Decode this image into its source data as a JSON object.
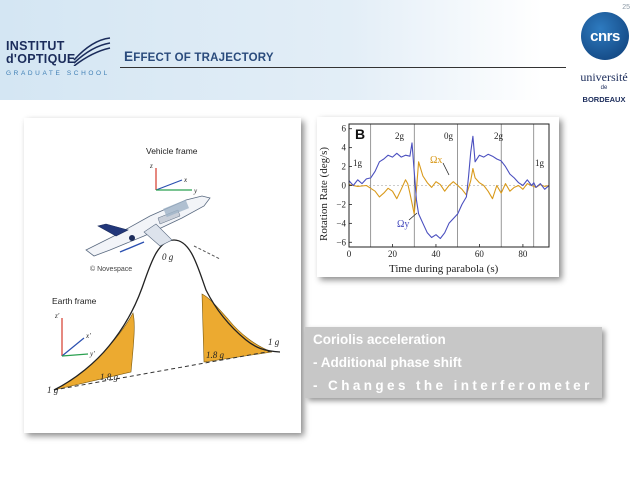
{
  "header": {
    "page_number": "25",
    "title_first": "E",
    "title_rest": "FFECT OF TRAJECTORY",
    "logo_institut": {
      "line1": "INSTITUT",
      "line2": "d'OPTIQUE",
      "line3": "GRADUATE SCHOOL"
    },
    "logo_cnrs": "cnrs",
    "logo_university": {
      "line1": "université",
      "line2": "de",
      "line3": "BORDEAUX"
    }
  },
  "trajectory_figure": {
    "vehicle_frame_label": "Vehicle frame",
    "earth_frame_label": "Earth frame",
    "credit": "© Novespace",
    "axis_z": "z",
    "axis_x": "x",
    "axis_y": "y",
    "axis_z_prime": "z'",
    "axis_x_prime": "x'",
    "axis_y_prime": "y'",
    "label_0g": "0 g",
    "label_18g_left": "1.8 g",
    "label_18g_right": "1.8 g",
    "label_1g_left": "1 g",
    "label_1g_right": "1 g"
  },
  "rotation_chart": {
    "panel_label": "B",
    "ylabel": "Rotation Rate  (deg/s)",
    "xlabel": "Time during parabola  (s)",
    "region_labels": [
      "1g",
      "2g",
      "0g",
      "2g",
      "1g"
    ],
    "omega_x_label": "Ωx",
    "omega_y_label": "Ωy",
    "colors": {
      "omega_x": "#d99a1c",
      "omega_y": "#4a4fbf",
      "dividers": "#555555"
    }
  },
  "chart_data": {
    "type": "line",
    "title": "",
    "xlabel": "Time during parabola  (s)",
    "ylabel": "Rotation Rate  (deg/s)",
    "xlim": [
      0,
      92
    ],
    "ylim": [
      -6.5,
      6.5
    ],
    "x_ticks": [
      0,
      20,
      40,
      60,
      80
    ],
    "y_ticks": [
      6,
      4,
      2,
      0,
      -2,
      -4,
      -6
    ],
    "region_dividers": [
      10,
      30,
      50,
      70,
      85
    ],
    "series": [
      {
        "name": "Ωx",
        "x": [
          0,
          4,
          8,
          10,
          12,
          14,
          16,
          18,
          20,
          22,
          24,
          26,
          27,
          28,
          30,
          31,
          32,
          34,
          36,
          38,
          40,
          42,
          44,
          46,
          48,
          50,
          52,
          54,
          56,
          57,
          58,
          60,
          62,
          64,
          66,
          68,
          70,
          72,
          74,
          76,
          78,
          80,
          82,
          84,
          86,
          88,
          90,
          92
        ],
        "values": [
          0.1,
          -0.1,
          0.0,
          -0.3,
          -0.6,
          -1.2,
          -0.8,
          -0.3,
          -0.6,
          -1.4,
          -0.4,
          0.6,
          0.2,
          -0.8,
          -3.0,
          -0.5,
          2.5,
          1.0,
          0.3,
          -0.2,
          0.4,
          0.1,
          -0.6,
          0.0,
          0.4,
          0.0,
          -0.4,
          -1.0,
          0.5,
          1.8,
          0.8,
          0.3,
          0.0,
          -0.6,
          -1.4,
          0.0,
          -0.8,
          0.2,
          -0.6,
          -0.2,
          0.0,
          -0.4,
          0.2,
          0.0,
          -0.2,
          0.1,
          -0.1,
          0.0
        ]
      },
      {
        "name": "Ωy",
        "x": [
          0,
          2,
          4,
          6,
          8,
          10,
          12,
          14,
          16,
          18,
          20,
          22,
          24,
          26,
          28,
          29,
          30,
          31,
          32,
          34,
          36,
          38,
          40,
          42,
          44,
          46,
          48,
          50,
          52,
          54,
          55,
          56,
          57,
          58,
          60,
          62,
          64,
          66,
          68,
          70,
          72,
          74,
          76,
          78,
          80,
          82,
          84,
          85,
          86,
          88,
          90,
          92
        ],
        "values": [
          0.5,
          0.0,
          0.6,
          0.2,
          0.7,
          0.8,
          1.5,
          2.5,
          2.8,
          3.2,
          3.0,
          3.4,
          3.0,
          3.2,
          3.1,
          4.5,
          1.5,
          -1.5,
          -3.0,
          -4.0,
          -5.0,
          -5.5,
          -5.2,
          -5.6,
          -5.0,
          -4.0,
          -3.5,
          -3.0,
          -2.0,
          -1.2,
          1.0,
          3.5,
          5.2,
          2.5,
          3.2,
          3.0,
          3.3,
          3.1,
          2.8,
          2.6,
          2.0,
          1.2,
          0.8,
          0.3,
          0.0,
          0.6,
          0.0,
          0.3,
          -0.2,
          0.2,
          -0.4,
          0.0
        ]
      }
    ],
    "grid": false,
    "legend": "none"
  },
  "textbox": {
    "line1": "Coriolis acceleration",
    "line2": "- Additional phase shift",
    "line3": "- Changes the interferometer"
  }
}
